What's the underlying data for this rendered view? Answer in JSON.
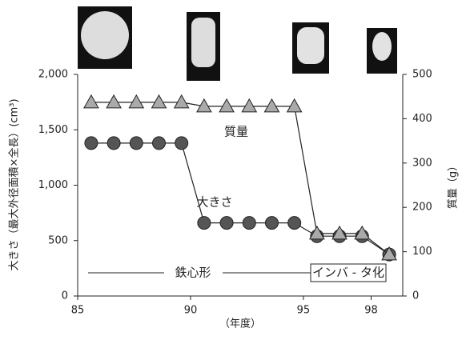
{
  "chart_data": {
    "type": "line",
    "x": [
      85.6,
      86.6,
      87.6,
      88.6,
      89.6,
      90.6,
      91.6,
      92.6,
      93.6,
      94.6,
      95.6,
      96.6,
      97.6,
      98.8
    ],
    "series": [
      {
        "name": "大きさ",
        "color": "#555555",
        "marker": "circle",
        "values": [
          1380,
          1380,
          1380,
          1380,
          1380,
          660,
          660,
          660,
          660,
          660,
          540,
          540,
          540,
          375
        ]
      },
      {
        "name": "質量",
        "color": "#aaaaaa",
        "marker": "triangle",
        "axis": "y2",
        "values": [
          437,
          437,
          437,
          437,
          437,
          428,
          428,
          428,
          428,
          428,
          141,
          141,
          141,
          94
        ]
      }
    ],
    "xlim": [
      85,
      99.4
    ],
    "xticks": [
      85,
      90,
      95,
      98
    ],
    "ylim": [
      0,
      2000
    ],
    "yticks": [
      0,
      500,
      {
        "value": 1000,
        "label": "1,000"
      },
      {
        "value": 1500,
        "label": "1,500"
      },
      {
        "value": 2000,
        "label": "2,000"
      }
    ],
    "y2lim": [
      0,
      500
    ],
    "y2ticks": [
      0,
      100,
      200,
      300,
      400,
      500
    ],
    "xlabel": "（年度）",
    "ylabel": "大きさ（最大外径面積×全長）(cm³)",
    "y2label": "質量（g）",
    "annotations": [
      "質量",
      "大きさ",
      "鉄心形",
      "インバ - タ化"
    ]
  }
}
